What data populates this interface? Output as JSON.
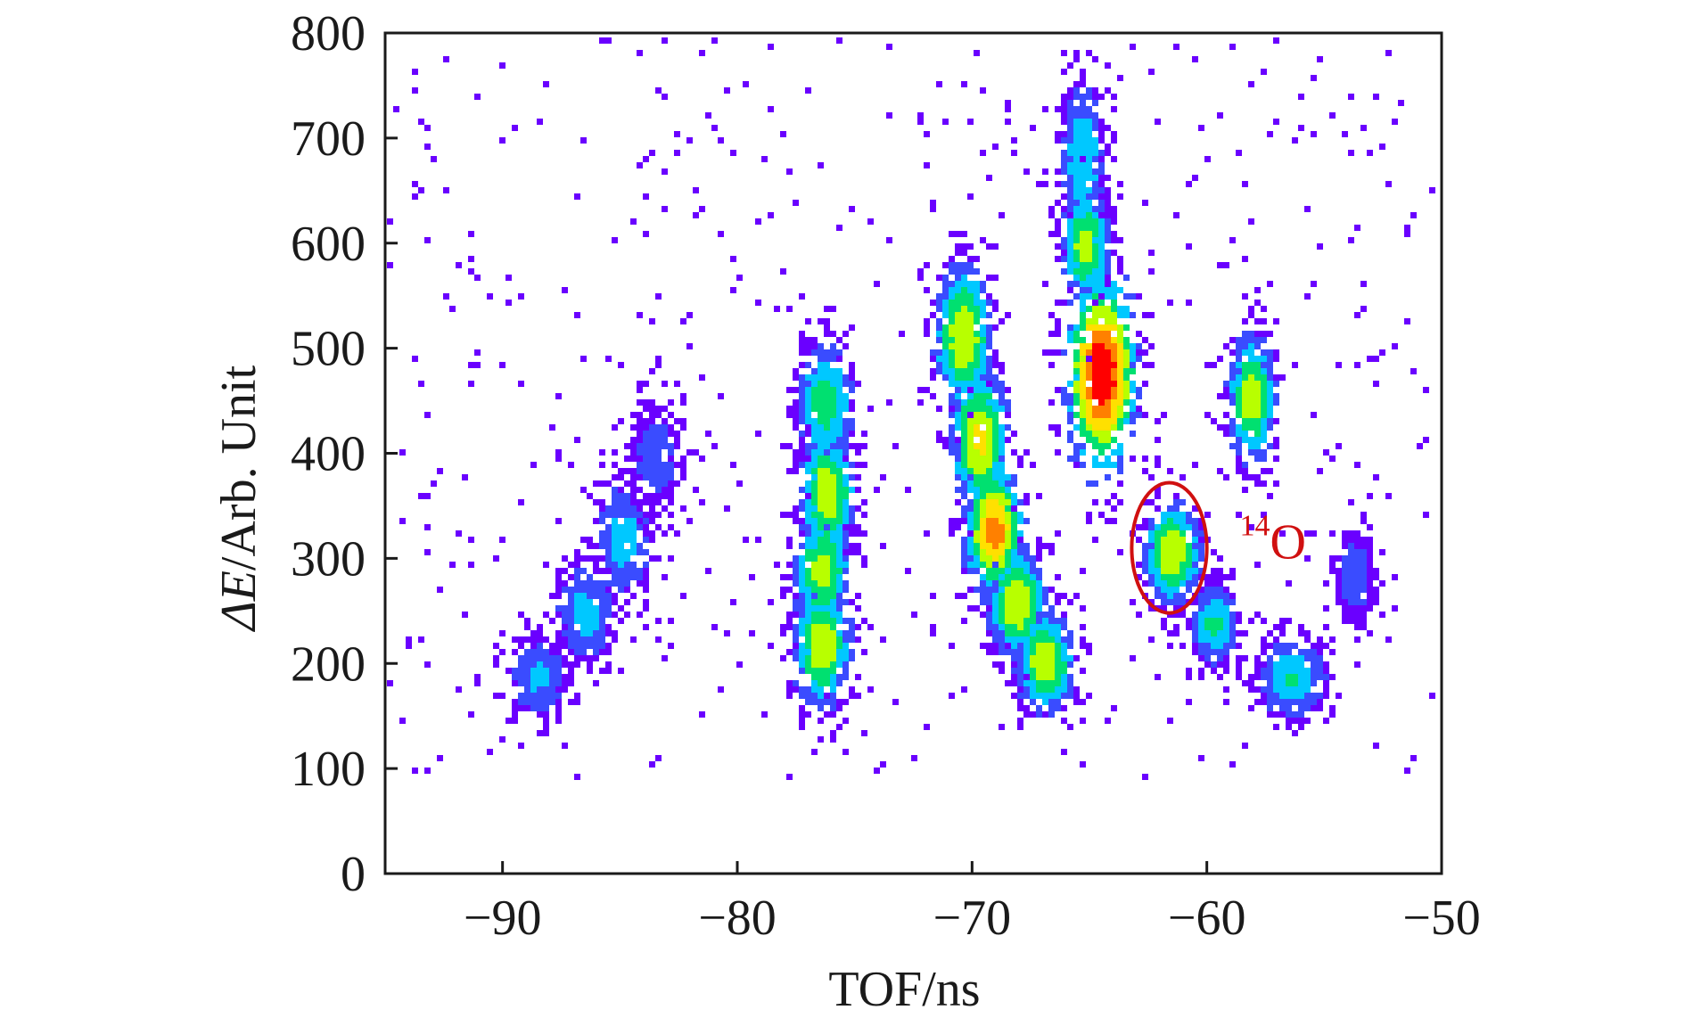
{
  "chart_data": {
    "type": "heatmap",
    "title": "",
    "xlabel": "TOF/ns",
    "ylabel_italic": "ΔE",
    "ylabel_rest": "/Arb. Unit",
    "xlim": [
      -95,
      -50
    ],
    "ylim": [
      0,
      800
    ],
    "xticks": [
      -90,
      -80,
      -70,
      -60,
      -50
    ],
    "xtick_labels": [
      "−90",
      "−80",
      "−70",
      "−60",
      "−50"
    ],
    "yticks": [
      0,
      100,
      200,
      300,
      400,
      500,
      600,
      700,
      800
    ],
    "ytick_labels": [
      "0",
      "100",
      "200",
      "300",
      "400",
      "500",
      "600",
      "700",
      "800"
    ],
    "grid": false,
    "colormap": [
      "#6a00ff",
      "#3a4cff",
      "#00c8ff",
      "#00e070",
      "#b8ff00",
      "#ffe000",
      "#ff8000",
      "#ff0000"
    ],
    "clusters": [
      {
        "x": -88.6,
        "y": 190,
        "sx": 0.6,
        "sy": 18,
        "peak": 0.28
      },
      {
        "x": -86.6,
        "y": 250,
        "sx": 0.6,
        "sy": 24,
        "peak": 0.3
      },
      {
        "x": -85.0,
        "y": 320,
        "sx": 0.6,
        "sy": 28,
        "peak": 0.3
      },
      {
        "x": -83.6,
        "y": 400,
        "sx": 0.5,
        "sy": 22,
        "peak": 0.22
      },
      {
        "x": -76.4,
        "y": 450,
        "sx": 0.55,
        "sy": 28,
        "peak": 0.45
      },
      {
        "x": -76.3,
        "y": 365,
        "sx": 0.55,
        "sy": 30,
        "peak": 0.58
      },
      {
        "x": -76.5,
        "y": 290,
        "sx": 0.55,
        "sy": 26,
        "peak": 0.55
      },
      {
        "x": -76.5,
        "y": 220,
        "sx": 0.55,
        "sy": 28,
        "peak": 0.6
      },
      {
        "x": -70.5,
        "y": 515,
        "sx": 0.55,
        "sy": 32,
        "peak": 0.62
      },
      {
        "x": -69.8,
        "y": 415,
        "sx": 0.55,
        "sy": 32,
        "peak": 0.65
      },
      {
        "x": -69.2,
        "y": 330,
        "sx": 0.55,
        "sy": 28,
        "peak": 0.8
      },
      {
        "x": -68.2,
        "y": 260,
        "sx": 0.55,
        "sy": 24,
        "peak": 0.62
      },
      {
        "x": -67.0,
        "y": 205,
        "sx": 0.55,
        "sy": 22,
        "peak": 0.6
      },
      {
        "x": -65.4,
        "y": 680,
        "sx": 0.45,
        "sy": 38,
        "peak": 0.35
      },
      {
        "x": -65.3,
        "y": 600,
        "sx": 0.45,
        "sy": 25,
        "peak": 0.55
      },
      {
        "x": -64.6,
        "y": 478,
        "sx": 0.65,
        "sy": 42,
        "peak": 1.0
      },
      {
        "x": -61.6,
        "y": 308,
        "sx": 0.55,
        "sy": 22,
        "peak": 0.62
      },
      {
        "x": -59.8,
        "y": 240,
        "sx": 0.45,
        "sy": 18,
        "peak": 0.4
      },
      {
        "x": -58.2,
        "y": 455,
        "sx": 0.45,
        "sy": 28,
        "peak": 0.58
      },
      {
        "x": -56.5,
        "y": 190,
        "sx": 0.7,
        "sy": 18,
        "peak": 0.38
      },
      {
        "x": -53.8,
        "y": 285,
        "sx": 0.35,
        "sy": 20,
        "peak": 0.22
      }
    ],
    "highlight": {
      "x": -61.6,
      "y": 310,
      "rx": 1.6,
      "ry": 62,
      "color": "#d01010"
    },
    "annotations": [
      {
        "x": -58.6,
        "y": 300,
        "mass": "14",
        "symbol": "O",
        "color": "#d01010"
      }
    ]
  }
}
